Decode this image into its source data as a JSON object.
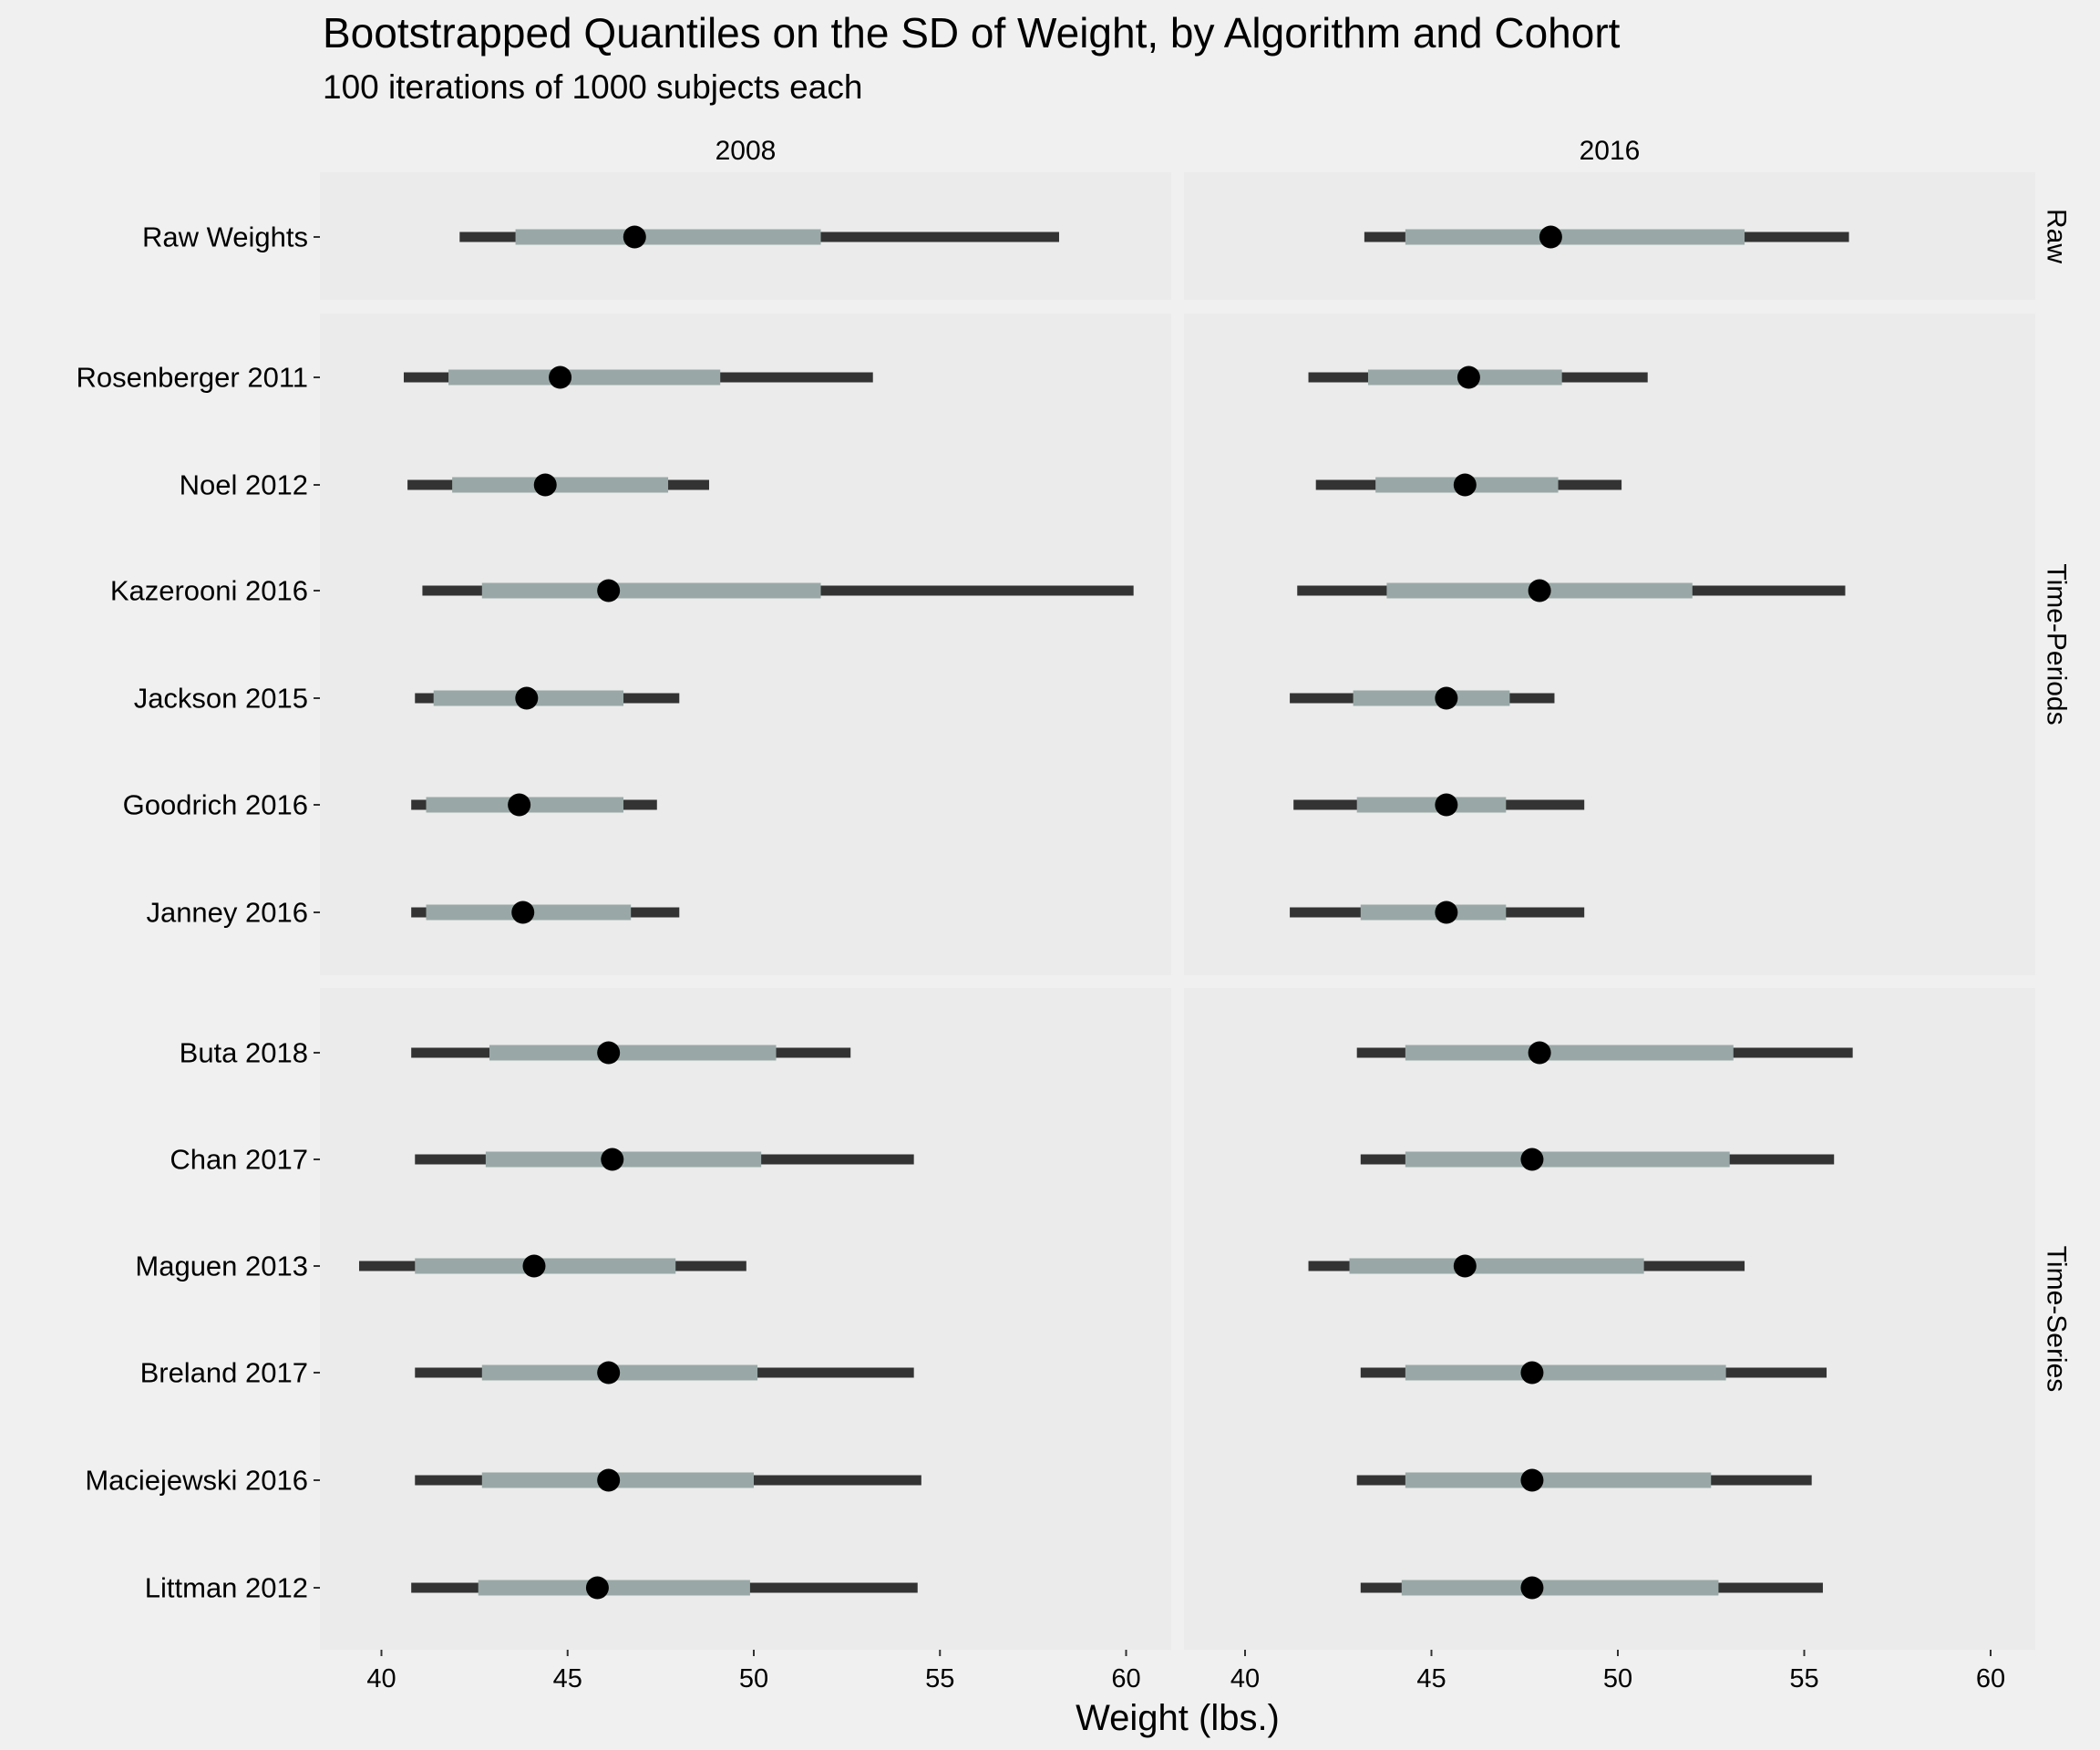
{
  "chart_data": {
    "type": "interval",
    "title": "Bootstrapped Quantiles on the SD of Weight, by Algorithm and Cohort",
    "subtitle": "100 iterations of 1000 subjects each",
    "xlabel": "Weight (lbs.)",
    "ylabel": "",
    "xlim": [
      38.4,
      61.3
    ],
    "x_ticks": [
      40,
      45,
      50,
      55,
      60
    ],
    "x_tick_labels": [
      "40",
      "45",
      "50",
      "55",
      "60"
    ],
    "grid": false,
    "columns": [
      "2008",
      "2016"
    ],
    "row_groups": [
      {
        "name": "Raw",
        "rows": [
          "Raw Weights"
        ]
      },
      {
        "name": "Time-Periods",
        "rows": [
          "Rosenberger 2011",
          "Noel 2012",
          "Kazerooni 2016",
          "Jackson 2015",
          "Goodrich 2016",
          "Janney 2016"
        ]
      },
      {
        "name": "Time-Series",
        "rows": [
          "Buta 2018",
          "Chan 2017",
          "Maguen 2013",
          "Breland 2017",
          "Maciejewski 2016",
          "Littman 2012"
        ]
      }
    ],
    "value_fields": [
      "outer_low",
      "inner_low",
      "median",
      "inner_high",
      "outer_high"
    ],
    "colors": {
      "outer": "#333333",
      "inner": "#99A8A6",
      "point": "#000000",
      "panel": "#EBEBEB",
      "background": "#F0F0F0"
    },
    "series": [
      {
        "name": "2008",
        "values": {
          "Raw Weights": [
            42.1,
            43.6,
            46.8,
            51.8,
            58.2
          ],
          "Rosenberger 2011": [
            40.6,
            41.8,
            44.8,
            49.1,
            53.2
          ],
          "Noel 2012": [
            40.7,
            41.9,
            44.4,
            47.7,
            48.8
          ],
          "Kazerooni 2016": [
            41.1,
            42.7,
            46.1,
            51.8,
            60.2
          ],
          "Jackson 2015": [
            40.9,
            41.4,
            43.9,
            46.5,
            48.0
          ],
          "Goodrich 2016": [
            40.8,
            41.2,
            43.7,
            46.5,
            47.4
          ],
          "Janney 2016": [
            40.8,
            41.2,
            43.8,
            46.7,
            48.0
          ],
          "Buta 2018": [
            40.8,
            42.9,
            46.1,
            50.6,
            52.6
          ],
          "Chan 2017": [
            40.9,
            42.8,
            46.2,
            50.2,
            54.3
          ],
          "Maguen 2013": [
            39.4,
            40.9,
            44.1,
            47.9,
            49.8
          ],
          "Breland 2017": [
            40.9,
            42.7,
            46.1,
            50.1,
            54.3
          ],
          "Maciejewski 2016": [
            40.9,
            42.7,
            46.1,
            50.0,
            54.5
          ],
          "Littman 2012": [
            40.8,
            42.6,
            45.8,
            49.9,
            54.4
          ]
        }
      },
      {
        "name": "2016",
        "values": {
          "Raw Weights": [
            43.2,
            44.3,
            48.2,
            53.4,
            56.2
          ],
          "Rosenberger 2011": [
            41.7,
            43.3,
            46.0,
            48.5,
            50.8
          ],
          "Noel 2012": [
            41.9,
            43.5,
            45.9,
            48.4,
            50.1
          ],
          "Kazerooni 2016": [
            41.4,
            43.8,
            47.9,
            52.0,
            56.1
          ],
          "Jackson 2015": [
            41.2,
            42.9,
            45.4,
            47.1,
            48.3
          ],
          "Goodrich 2016": [
            41.3,
            43.0,
            45.4,
            47.0,
            49.1
          ],
          "Janney 2016": [
            41.2,
            43.1,
            45.4,
            47.0,
            49.1
          ],
          "Buta 2018": [
            43.0,
            44.3,
            47.9,
            53.1,
            56.3
          ],
          "Chan 2017": [
            43.1,
            44.3,
            47.7,
            53.0,
            55.8
          ],
          "Maguen 2013": [
            41.7,
            42.8,
            45.9,
            50.7,
            53.4
          ],
          "Breland 2017": [
            43.1,
            44.3,
            47.7,
            52.9,
            55.6
          ],
          "Maciejewski 2016": [
            43.0,
            44.3,
            47.7,
            52.5,
            55.2
          ],
          "Littman 2012": [
            43.1,
            44.2,
            47.7,
            52.7,
            55.5
          ]
        }
      }
    ]
  }
}
